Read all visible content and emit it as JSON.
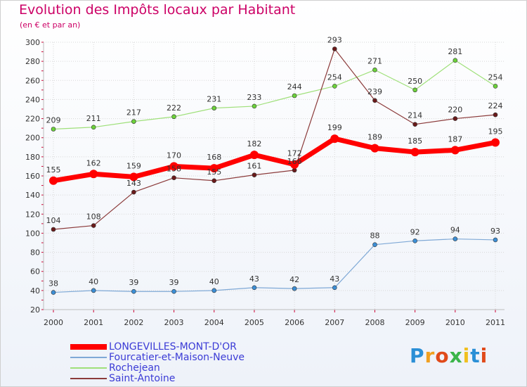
{
  "title": "Evolution des Impôts locaux par Habitant",
  "subtitle": "(en € et par an)",
  "logo": {
    "text": "Proxiti",
    "letters": [
      "P",
      "r",
      "o",
      "x",
      "i",
      "t",
      "i"
    ],
    "colors": [
      "#2a8fd6",
      "#f0a020",
      "#e04a1a",
      "#3bb54a",
      "#f0c020",
      "#2a8fd6",
      "#e04a1a"
    ]
  },
  "chart_data": {
    "type": "line",
    "title": "Evolution des Impôts locaux par Habitant",
    "subtitle": "(en € et par an)",
    "xlabel": "",
    "ylabel": "",
    "x": [
      "2000",
      "2001",
      "2002",
      "2003",
      "2004",
      "2005",
      "2006",
      "2007",
      "2008",
      "2009",
      "2010",
      "2011"
    ],
    "ylim": [
      20,
      300
    ],
    "yticks": [
      20,
      40,
      60,
      80,
      100,
      120,
      140,
      160,
      180,
      200,
      220,
      240,
      260,
      280,
      300
    ],
    "grid": true,
    "legend_position": "bottom-left",
    "series": [
      {
        "name": "LONGEVILLES-MONT-D'OR",
        "color": "#ff0000",
        "marker_color": "#ff0000",
        "emphasis": true,
        "values": [
          155,
          162,
          159,
          170,
          168,
          182,
          172,
          199,
          189,
          185,
          187,
          195
        ]
      },
      {
        "name": "Fourcatier-et-Maison-Neuve",
        "color": "#7fa9d6",
        "marker_color": "#3c8fd6",
        "emphasis": false,
        "values": [
          38,
          40,
          39,
          39,
          40,
          43,
          42,
          43,
          88,
          92,
          94,
          93
        ]
      },
      {
        "name": "Rochejean",
        "color": "#9fe07a",
        "marker_color": "#6cd23a",
        "emphasis": false,
        "values": [
          209,
          211,
          217,
          222,
          231,
          233,
          244,
          254,
          271,
          250,
          281,
          254
        ]
      },
      {
        "name": "Saint-Antoine",
        "color": "#8b3a3a",
        "marker_color": "#6a1a1a",
        "emphasis": false,
        "values": [
          104,
          108,
          143,
          158,
          155,
          161,
          166,
          293,
          239,
          214,
          220,
          224
        ]
      }
    ],
    "labels": [
      [
        155,
        162,
        159,
        170,
        168,
        182,
        172,
        199,
        189,
        185,
        187,
        195
      ],
      [
        38,
        40,
        39,
        39,
        40,
        43,
        42,
        43,
        88,
        92,
        94,
        93
      ],
      [
        209,
        211,
        217,
        222,
        231,
        233,
        244,
        254,
        271,
        250,
        281,
        254
      ],
      [
        104,
        108,
        143,
        158,
        155,
        161,
        166,
        293,
        239,
        214,
        220,
        224
      ]
    ]
  }
}
